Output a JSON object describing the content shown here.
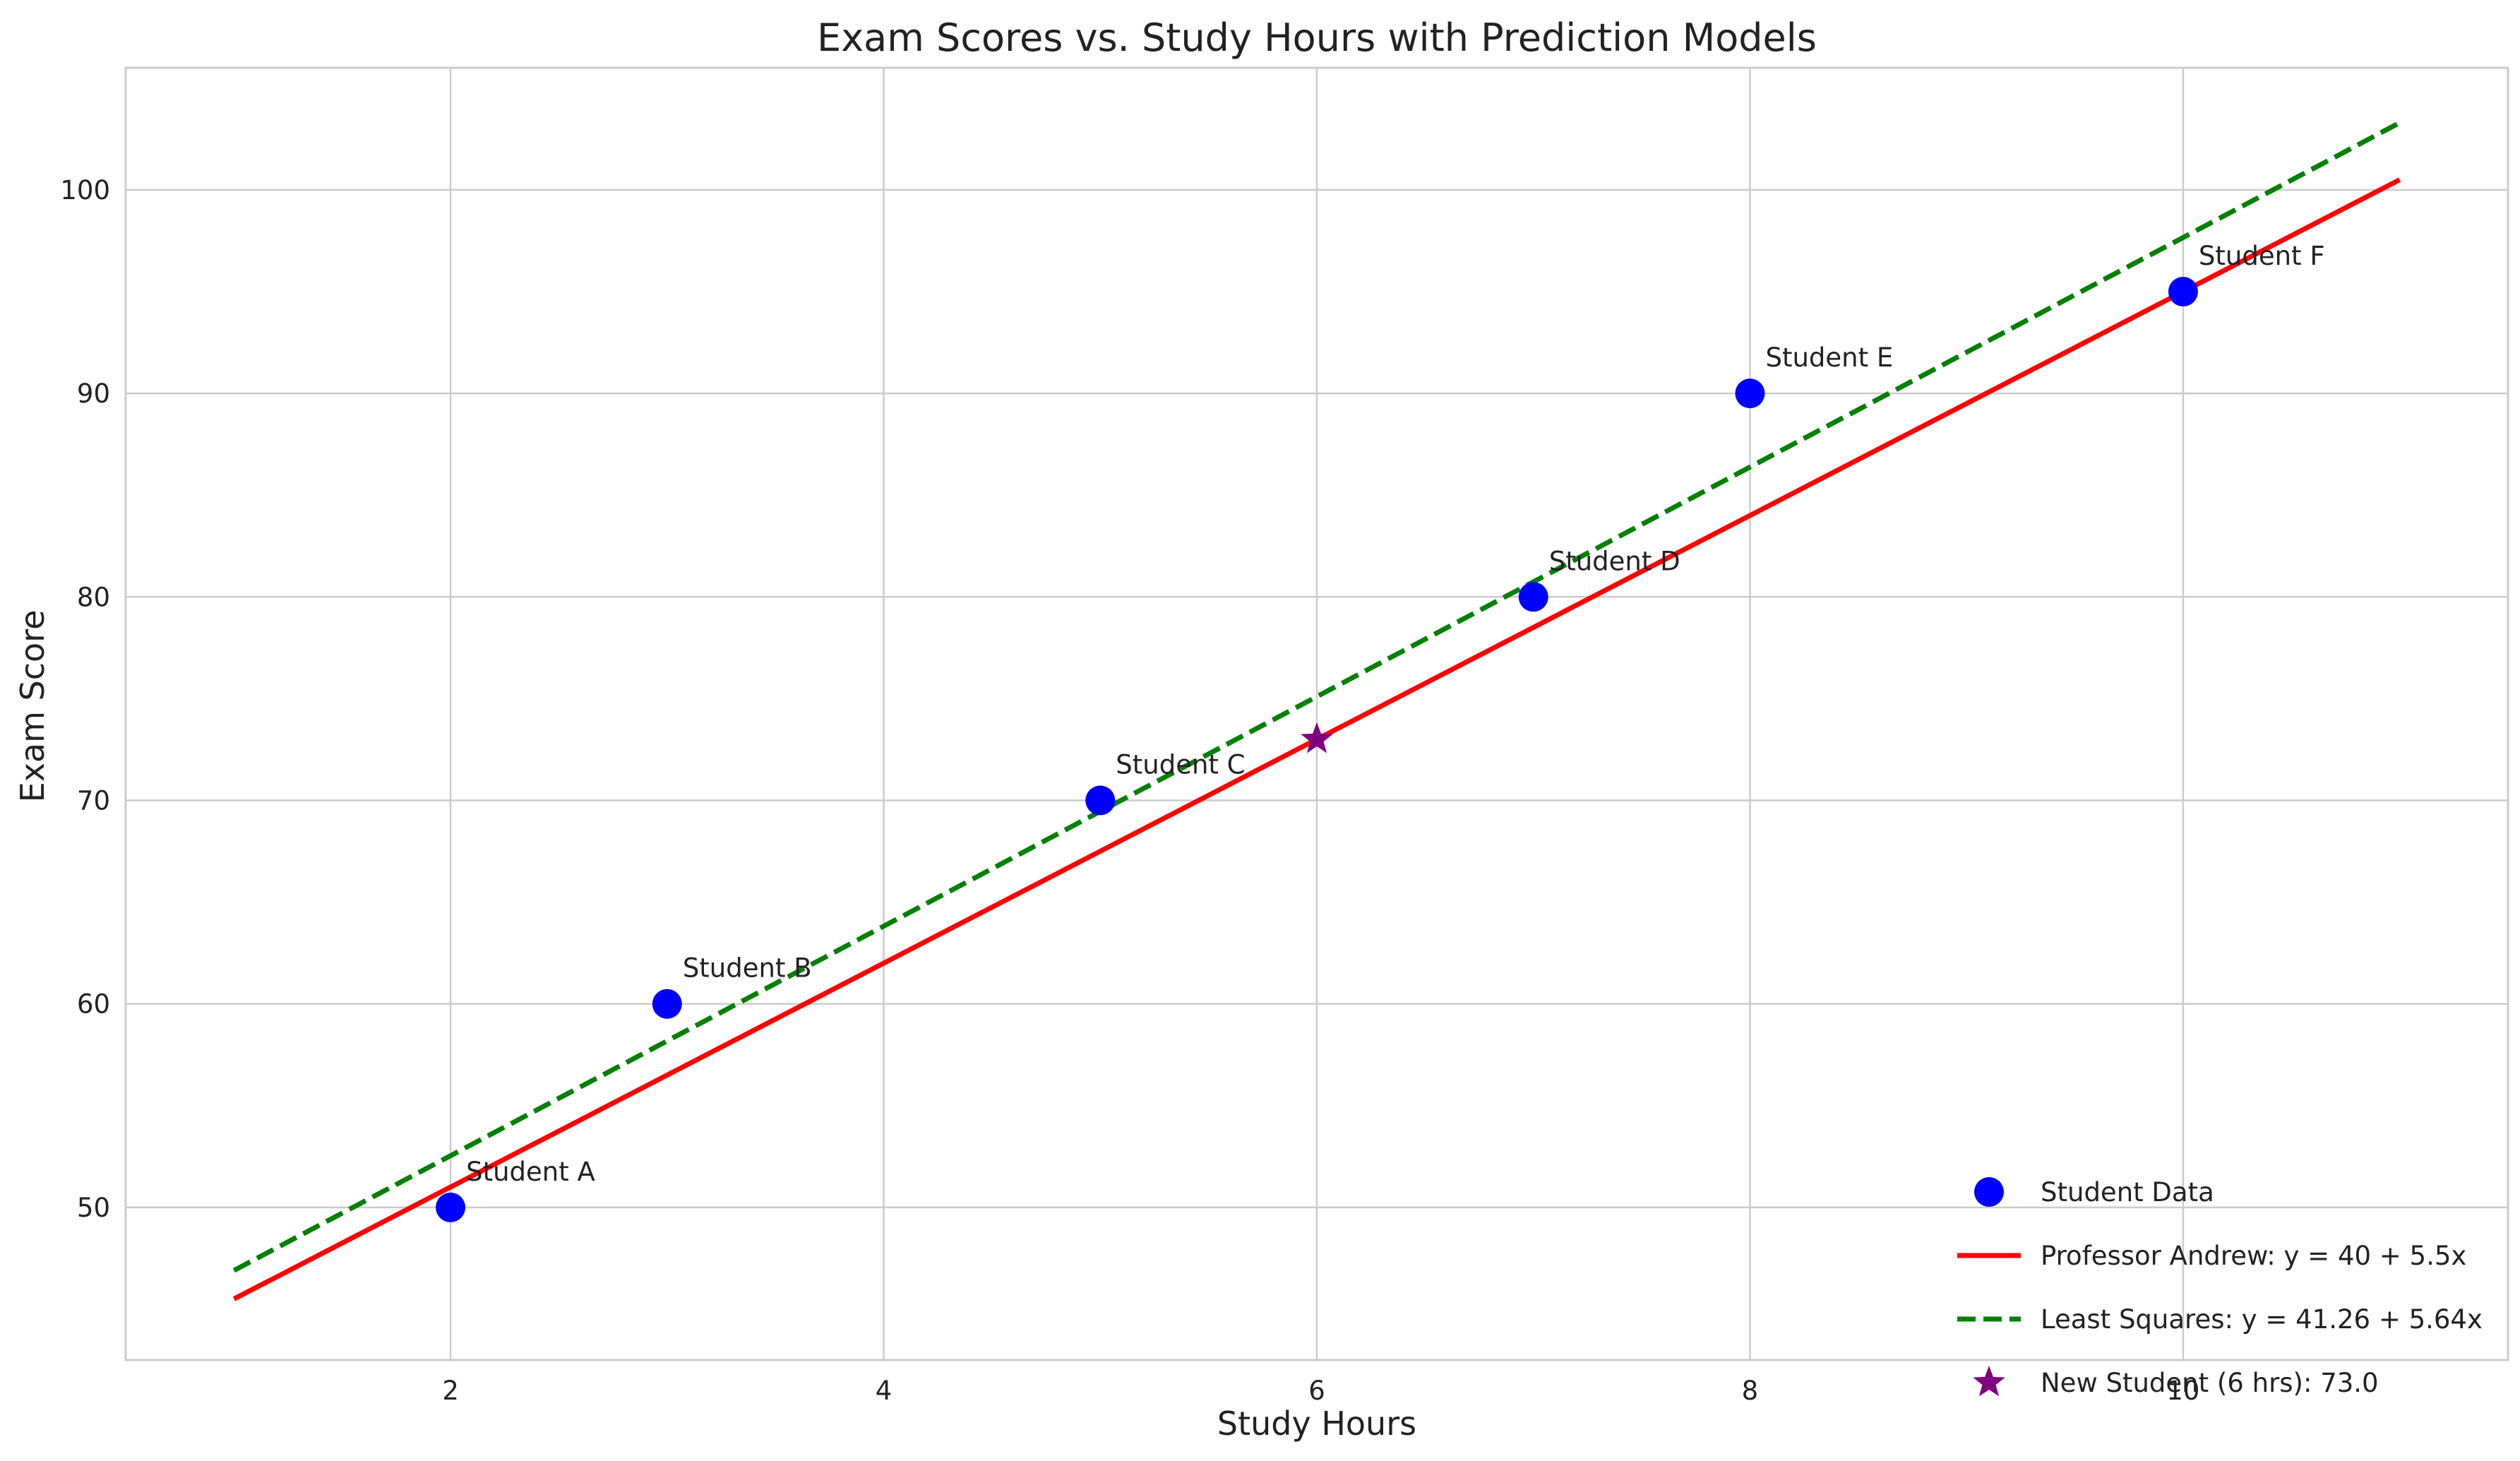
{
  "chart_data": {
    "type": "scatter",
    "title": "Exam Scores vs. Study Hours with Prediction Models",
    "xlabel": "Study Hours",
    "ylabel": "Exam Score",
    "xlim": [
      0.5,
      11.5
    ],
    "ylim": [
      42.5,
      106.0
    ],
    "x_ticks": [
      2,
      4,
      6,
      8,
      10
    ],
    "y_ticks": [
      50,
      60,
      70,
      80,
      90,
      100
    ],
    "grid": true,
    "legend_position": "lower-right",
    "points": [
      {
        "label": "Student A",
        "x": 2,
        "y": 50
      },
      {
        "label": "Student B",
        "x": 3,
        "y": 60
      },
      {
        "label": "Student C",
        "x": 5,
        "y": 70
      },
      {
        "label": "Student D",
        "x": 7,
        "y": 80
      },
      {
        "label": "Student E",
        "x": 8,
        "y": 90
      },
      {
        "label": "Student F",
        "x": 10,
        "y": 95
      }
    ],
    "series": [
      {
        "name": "Student Data",
        "kind": "scatter",
        "marker": "circle",
        "color": "#0000ff"
      },
      {
        "name": "Professor Andrew: y = 40 + 5.5x",
        "kind": "line",
        "style": "solid",
        "color": "#ff0000",
        "intercept": 40,
        "slope": 5.5,
        "x_range": [
          1,
          11
        ]
      },
      {
        "name": "Least Squares: y = 41.26 + 5.64x",
        "kind": "line",
        "style": "dashed",
        "color": "#008000",
        "intercept": 41.26,
        "slope": 5.64,
        "x_range": [
          1,
          11
        ]
      },
      {
        "name": "New Student (6 hrs): 73.0",
        "kind": "scatter",
        "marker": "star",
        "color": "#800080",
        "x": 6,
        "y": 73.0
      }
    ]
  }
}
